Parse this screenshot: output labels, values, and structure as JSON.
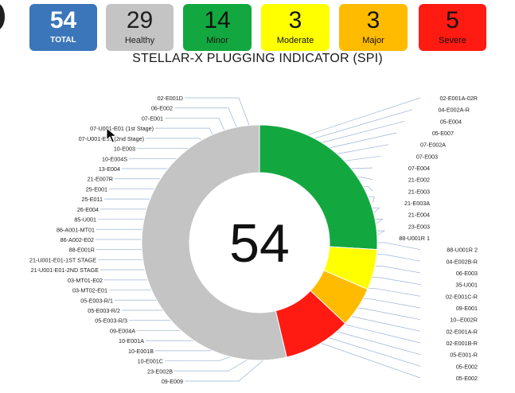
{
  "tiles": [
    {
      "id": "total",
      "value": "54",
      "label": "TOTAL",
      "color": "#3b76ba"
    },
    {
      "id": "healthy",
      "value": "29",
      "label": "Healthy",
      "color": "#c4c4c4"
    },
    {
      "id": "minor",
      "value": "14",
      "label": "Minor",
      "color": "#12a83f"
    },
    {
      "id": "moderate",
      "value": "3",
      "label": "Moderate",
      "color": "#ffff00"
    },
    {
      "id": "major",
      "value": "3",
      "label": "Major",
      "color": "#ffbb00"
    },
    {
      "id": "severe",
      "value": "5",
      "label": "Severe",
      "color": "#ff1a12"
    }
  ],
  "chart_data": {
    "type": "pie",
    "title": "STELLAR-X PLUGGING INDICATOR (SPI)",
    "center_text": "54",
    "slices": [
      {
        "name": "Minor",
        "value": 14,
        "color": "#12a83f"
      },
      {
        "name": "Moderate",
        "value": 3,
        "color": "#ffff00"
      },
      {
        "name": "Major",
        "value": 3,
        "color": "#ffbb00"
      },
      {
        "name": "Severe",
        "value": 5,
        "color": "#ff1a12"
      },
      {
        "name": "Healthy",
        "value": 29,
        "color": "#c4c4c4"
      }
    ],
    "labels_right": [
      "02-E001A-02R",
      "04-E002A-R",
      "05-E004",
      "05-E007",
      "07-E002A",
      "07-E003",
      "07-E004",
      "21-E002",
      "21-E003",
      "21-E003A",
      "21-E004",
      "23-E003",
      "88-U001R 1",
      "88-U001R 2",
      "04-E002B-R",
      "06-E003",
      "35-U001",
      "02-E001C-R",
      "09-E001",
      "10--E002R",
      "02-E001A-R",
      "02-E001B-R",
      "05-E001-R",
      "05-E002",
      "05-E002"
    ],
    "labels_left": [
      "02-E001D",
      "06-E002",
      "07-E001",
      "07-U001-E01 (1st Stage)",
      "07-U001-E01 (2nd Stage)",
      "10-E003",
      "10-E004S",
      "13-E004",
      "21-E007R",
      "25-E001",
      "25-E011",
      "26-E004",
      "85-U001",
      "86-A001-MT01",
      "86-A002-E02",
      "88-E001R",
      "21-U001-E01-1ST STAGE",
      "21-U001-E01-2ND STAGE",
      "03-MT01-E02",
      "03-MT02-E01",
      "05-E003-R/1",
      "05-E003-R/2",
      "05-E003-R/3",
      "09-E004A",
      "10-E001A",
      "10-E001B",
      "10-E001C",
      "23-E002B",
      "09-E009"
    ]
  }
}
